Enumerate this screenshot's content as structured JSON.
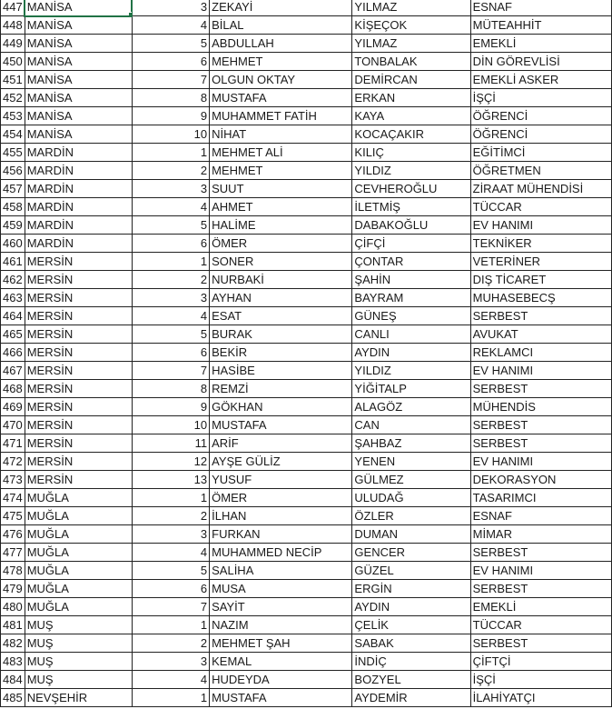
{
  "sheet": {
    "selection_color": "#217346",
    "selected_cell_row": 447,
    "rows": [
      {
        "row": "447",
        "city": "MANİSA",
        "no": "3",
        "name": "ZEKAYİ",
        "surname": "YILMAZ",
        "job": "ESNAF"
      },
      {
        "row": "448",
        "city": "MANİSA",
        "no": "4",
        "name": "BİLAL",
        "surname": "KİŞEÇOK",
        "job": "MÜTEAHHİT"
      },
      {
        "row": "449",
        "city": "MANİSA",
        "no": "5",
        "name": "ABDULLAH",
        "surname": "YILMAZ",
        "job": "EMEKLİ"
      },
      {
        "row": "450",
        "city": "MANİSA",
        "no": "6",
        "name": "MEHMET",
        "surname": "TONBALAK",
        "job": "DİN GÖREVLİSİ"
      },
      {
        "row": "451",
        "city": "MANİSA",
        "no": "7",
        "name": "OLGUN OKTAY",
        "surname": "DEMİRCAN",
        "job": "EMEKLİ ASKER"
      },
      {
        "row": "452",
        "city": "MANİSA",
        "no": "8",
        "name": "MUSTAFA",
        "surname": "ERKAN",
        "job": "İŞÇİ"
      },
      {
        "row": "453",
        "city": "MANİSA",
        "no": "9",
        "name": "MUHAMMET FATİH",
        "surname": "KAYA",
        "job": "ÖĞRENCİ"
      },
      {
        "row": "454",
        "city": "MANİSA",
        "no": "10",
        "name": "NİHAT",
        "surname": "KOCAÇAKIR",
        "job": "ÖĞRENCİ"
      },
      {
        "row": "455",
        "city": "MARDİN",
        "no": "1",
        "name": "MEHMET ALİ",
        "surname": "KILIÇ",
        "job": "EĞİTİMCİ"
      },
      {
        "row": "456",
        "city": "MARDİN",
        "no": "2",
        "name": "MEHMET",
        "surname": "YILDIZ",
        "job": "ÖĞRETMEN"
      },
      {
        "row": "457",
        "city": "MARDİN",
        "no": "3",
        "name": "SUUT",
        "surname": "CEVHEROĞLU",
        "job": "ZİRAAT MÜHENDİSİ"
      },
      {
        "row": "458",
        "city": "MARDİN",
        "no": "4",
        "name": "AHMET",
        "surname": "İLETMİŞ",
        "job": "TÜCCAR"
      },
      {
        "row": "459",
        "city": "MARDİN",
        "no": "5",
        "name": "HALİME",
        "surname": "DABAKOĞLU",
        "job": "EV HANIMI"
      },
      {
        "row": "460",
        "city": "MARDİN",
        "no": "6",
        "name": "ÖMER",
        "surname": "ÇİFÇİ",
        "job": "TEKNİKER"
      },
      {
        "row": "461",
        "city": "MERSİN",
        "no": "1",
        "name": "SONER",
        "surname": "ÇONTAR",
        "job": "VETERİNER"
      },
      {
        "row": "462",
        "city": "MERSİN",
        "no": "2",
        "name": "NURBAKİ",
        "surname": "ŞAHİN",
        "job": "DIŞ TİCARET"
      },
      {
        "row": "463",
        "city": "MERSİN",
        "no": "3",
        "name": "AYHAN",
        "surname": "BAYRAM",
        "job": "MUHASEBECŞ"
      },
      {
        "row": "464",
        "city": "MERSİN",
        "no": "4",
        "name": "ESAT",
        "surname": "GÜNEŞ",
        "job": "SERBEST"
      },
      {
        "row": "465",
        "city": "MERSİN",
        "no": "5",
        "name": "BURAK",
        "surname": "CANLI",
        "job": "AVUKAT"
      },
      {
        "row": "466",
        "city": "MERSİN",
        "no": "6",
        "name": "BEKİR",
        "surname": "AYDIN",
        "job": "REKLAMCI"
      },
      {
        "row": "467",
        "city": "MERSİN",
        "no": "7",
        "name": "HASİBE",
        "surname": "YILDIZ",
        "job": "EV HANIMI"
      },
      {
        "row": "468",
        "city": "MERSİN",
        "no": "8",
        "name": "REMZİ",
        "surname": "YİĞİTALP",
        "job": "SERBEST"
      },
      {
        "row": "469",
        "city": "MERSİN",
        "no": "9",
        "name": "GÖKHAN",
        "surname": "ALAGÖZ",
        "job": "MÜHENDİS"
      },
      {
        "row": "470",
        "city": "MERSİN",
        "no": "10",
        "name": "MUSTAFA",
        "surname": "CAN",
        "job": "SERBEST"
      },
      {
        "row": "471",
        "city": "MERSİN",
        "no": "11",
        "name": "ARİF",
        "surname": "ŞAHBAZ",
        "job": "SERBEST"
      },
      {
        "row": "472",
        "city": "MERSİN",
        "no": "12",
        "name": "AYŞE GÜLİZ",
        "surname": "YENEN",
        "job": "EV HANIMI"
      },
      {
        "row": "473",
        "city": "MERSİN",
        "no": "13",
        "name": "YUSUF",
        "surname": "GÜLMEZ",
        "job": "DEKORASYON"
      },
      {
        "row": "474",
        "city": "MUĞLA",
        "no": "1",
        "name": "ÖMER",
        "surname": "ULUDAĞ",
        "job": "TASARIMCI"
      },
      {
        "row": "475",
        "city": "MUĞLA",
        "no": "2",
        "name": "İLHAN",
        "surname": "ÖZLER",
        "job": "ESNAF"
      },
      {
        "row": "476",
        "city": "MUĞLA",
        "no": "3",
        "name": "FURKAN",
        "surname": "DUMAN",
        "job": "MİMAR"
      },
      {
        "row": "477",
        "city": "MUĞLA",
        "no": "4",
        "name": "MUHAMMED NECİP",
        "surname": "GENCER",
        "job": "SERBEST"
      },
      {
        "row": "478",
        "city": "MUĞLA",
        "no": "5",
        "name": "SALİHA",
        "surname": "GÜZEL",
        "job": "EV HANIMI"
      },
      {
        "row": "479",
        "city": "MUĞLA",
        "no": "6",
        "name": "MUSA",
        "surname": "ERGİN",
        "job": "SERBEST"
      },
      {
        "row": "480",
        "city": "MUĞLA",
        "no": "7",
        "name": "SAYİT",
        "surname": "AYDIN",
        "job": "EMEKLİ"
      },
      {
        "row": "481",
        "city": "MUŞ",
        "no": "1",
        "name": "NAZIM",
        "surname": "ÇELİK",
        "job": "TÜCCAR"
      },
      {
        "row": "482",
        "city": "MUŞ",
        "no": "2",
        "name": "MEHMET ŞAH",
        "surname": "SABAK",
        "job": "SERBEST"
      },
      {
        "row": "483",
        "city": "MUŞ",
        "no": "3",
        "name": "KEMAL",
        "surname": "İNDİÇ",
        "job": "ÇİFTÇİ"
      },
      {
        "row": "484",
        "city": "MUŞ",
        "no": "4",
        "name": "HUDEYDA",
        "surname": "BOZYEL",
        "job": "İŞÇİ"
      },
      {
        "row": "485",
        "city": "NEVŞEHİR",
        "no": "1",
        "name": "MUSTAFA",
        "surname": "AYDEMİR",
        "job": "İLAHİYATÇI"
      }
    ]
  }
}
